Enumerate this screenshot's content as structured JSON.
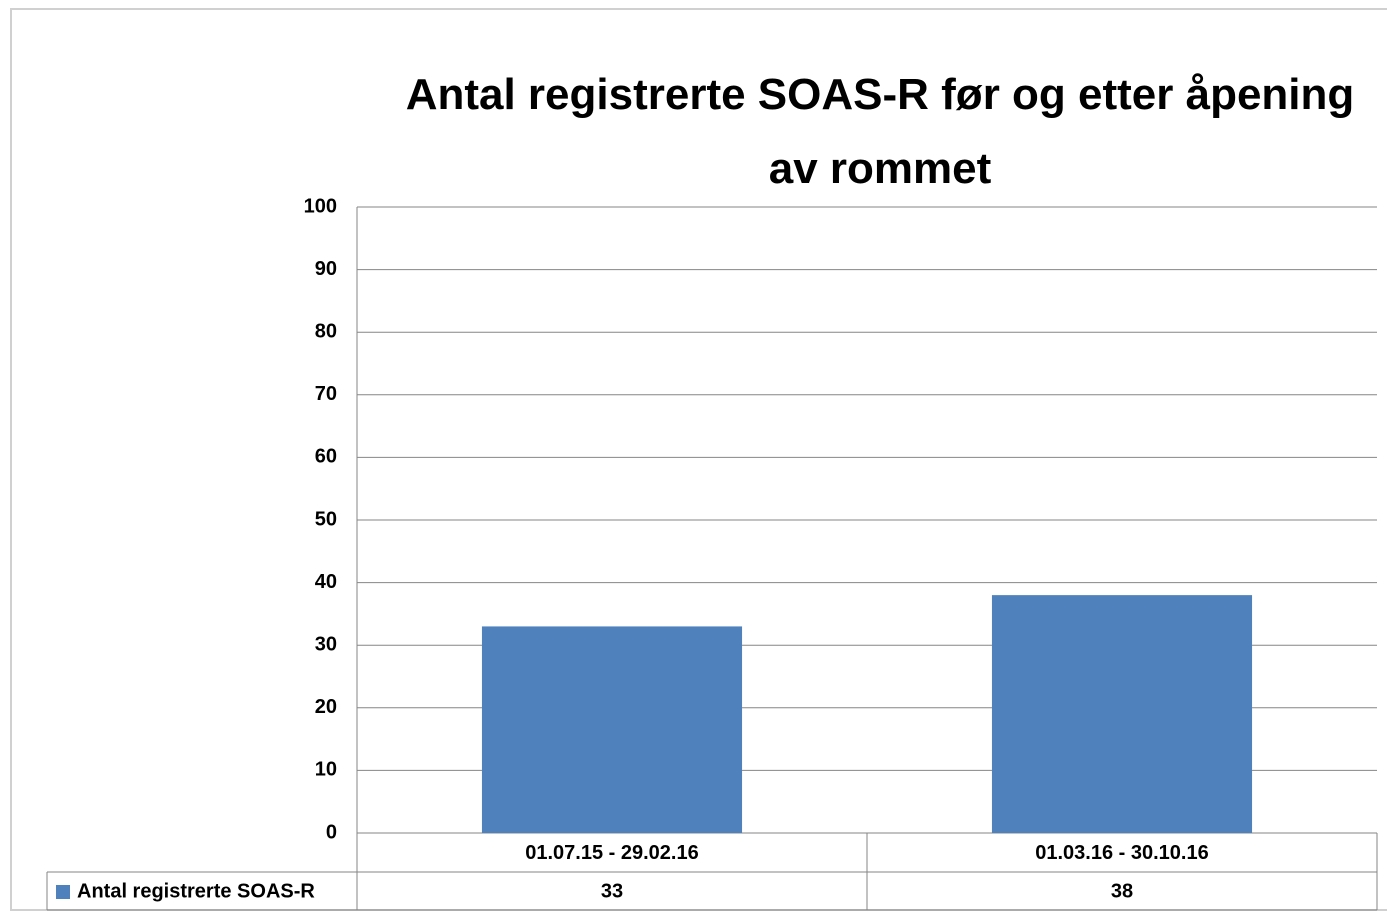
{
  "chart_data": {
    "type": "bar",
    "title": "Antal registrerte SOAS-R før og etter åpening av rommet",
    "categories": [
      "01.07.15 - 29.02.16",
      "01.03.16 - 30.10.16"
    ],
    "series": [
      {
        "name": "Antal registrerte SOAS-R",
        "color": "#4f81bd",
        "values": [
          33,
          38
        ]
      }
    ],
    "ylim": [
      0,
      100
    ],
    "yticks": [
      0,
      10,
      20,
      30,
      40,
      50,
      60,
      70,
      80,
      90,
      100
    ],
    "grid": true,
    "data_table": true
  }
}
